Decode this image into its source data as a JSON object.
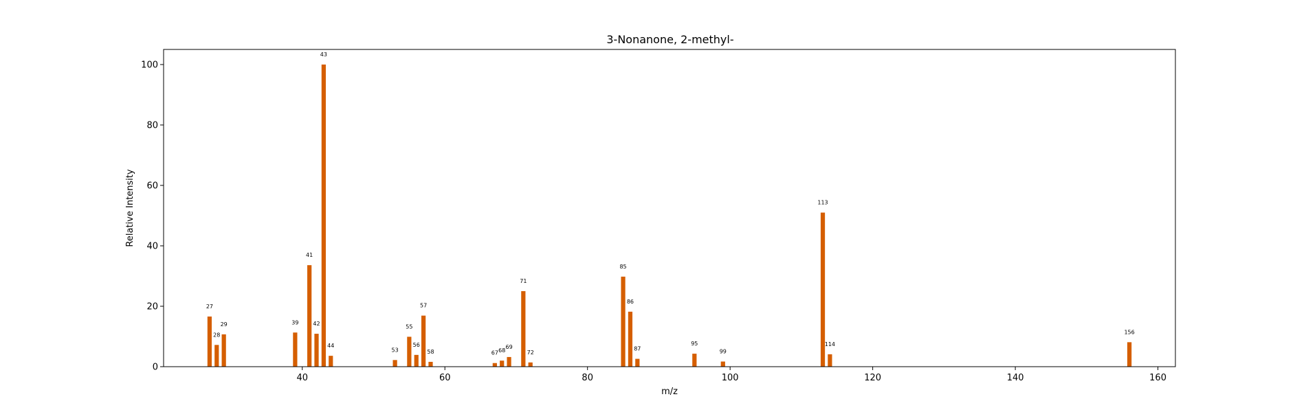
{
  "chart_data": {
    "type": "bar",
    "title": "3-Nonanone, 2-methyl-",
    "xlabel": "m/z",
    "ylabel": "Relative Intensity",
    "xlim": [
      20.55,
      162.45
    ],
    "ylim": [
      0,
      105
    ],
    "xticks": [
      40,
      60,
      80,
      100,
      120,
      140,
      160
    ],
    "yticks": [
      0,
      20,
      40,
      60,
      80,
      100
    ],
    "grid": false,
    "bar_color": "#d55e00",
    "bar_width": 0.6,
    "peaks": [
      {
        "x": 27,
        "y": 16.6,
        "label": "27"
      },
      {
        "x": 28,
        "y": 7.2,
        "label": "28"
      },
      {
        "x": 29,
        "y": 10.7,
        "label": "29"
      },
      {
        "x": 39,
        "y": 11.3,
        "label": "39"
      },
      {
        "x": 41,
        "y": 33.6,
        "label": "41"
      },
      {
        "x": 42,
        "y": 10.9,
        "label": "42"
      },
      {
        "x": 43,
        "y": 100.0,
        "label": "43"
      },
      {
        "x": 44,
        "y": 3.6,
        "label": "44"
      },
      {
        "x": 53,
        "y": 2.2,
        "label": "53"
      },
      {
        "x": 55,
        "y": 9.9,
        "label": "55"
      },
      {
        "x": 56,
        "y": 3.9,
        "label": "56"
      },
      {
        "x": 57,
        "y": 16.9,
        "label": "57"
      },
      {
        "x": 58,
        "y": 1.6,
        "label": "58"
      },
      {
        "x": 67,
        "y": 1.2,
        "label": "67"
      },
      {
        "x": 68,
        "y": 2.0,
        "label": "68"
      },
      {
        "x": 69,
        "y": 3.2,
        "label": "69"
      },
      {
        "x": 71,
        "y": 25.0,
        "label": "71"
      },
      {
        "x": 72,
        "y": 1.4,
        "label": "72"
      },
      {
        "x": 85,
        "y": 29.8,
        "label": "85"
      },
      {
        "x": 86,
        "y": 18.2,
        "label": "86"
      },
      {
        "x": 87,
        "y": 2.6,
        "label": "87"
      },
      {
        "x": 95,
        "y": 4.3,
        "label": "95"
      },
      {
        "x": 99,
        "y": 1.7,
        "label": "99"
      },
      {
        "x": 113,
        "y": 51.0,
        "label": "113"
      },
      {
        "x": 114,
        "y": 4.1,
        "label": "114"
      },
      {
        "x": 156,
        "y": 8.1,
        "label": "156"
      }
    ]
  }
}
